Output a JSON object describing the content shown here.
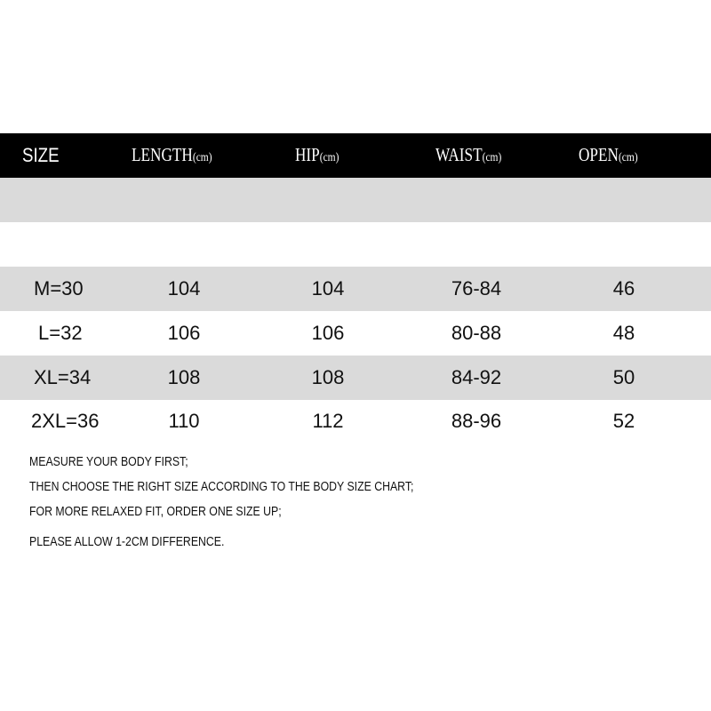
{
  "header": {
    "columns": [
      {
        "label": "SIZE",
        "unit": ""
      },
      {
        "label": "LENGTH",
        "unit": "(cm)"
      },
      {
        "label": "HIP",
        "unit": "(cm)"
      },
      {
        "label": "WAIST",
        "unit": "(cm)"
      },
      {
        "label": "OPEN",
        "unit": "(cm)"
      }
    ]
  },
  "rows": [
    [
      "M=30",
      "104",
      "104",
      "76-84",
      "46"
    ],
    [
      "L=32",
      "106",
      "106",
      "80-88",
      "48"
    ],
    [
      "XL=34",
      "108",
      "108",
      "84-92",
      "50"
    ],
    [
      "2XL=36",
      "110",
      "112",
      "88-96",
      "52"
    ]
  ],
  "notes": [
    "MEASURE YOUR BODY FIRST;",
    "THEN CHOOSE THE RIGHT SIZE ACCORDING TO THE BODY SIZE CHART;",
    "FOR MORE RELAXED FIT, ORDER ONE SIZE UP;",
    "PLEASE ALLOW 1-2CM DIFFERENCE."
  ],
  "colors": {
    "header_bg": "#000000",
    "stripe": "#dadada"
  }
}
